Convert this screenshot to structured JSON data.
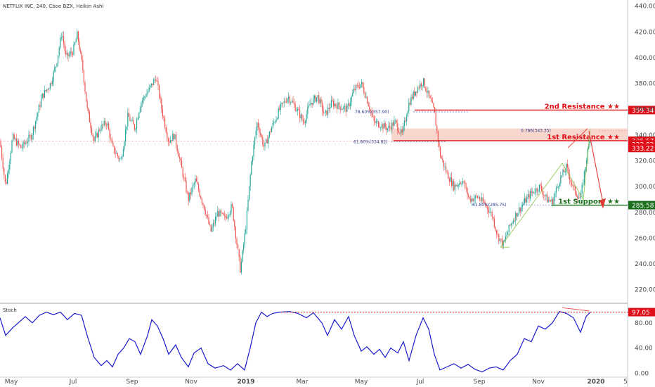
{
  "header": {
    "title": "NETFLIX INC, 240, Cboe BZX, Heikin Ashi"
  },
  "colors": {
    "up": "#26a69a",
    "down": "#ef5350",
    "resistance": "#e0101a",
    "support": "#1b6e1b",
    "stoch": "#1a1acc",
    "zone": "#f7c8bc"
  },
  "chart_data": [
    {
      "type": "line",
      "name": "price-panel",
      "title": "NETFLIX INC, 240, Cboe BZX, Heikin Ashi",
      "x_labels": [
        "May",
        "Jul",
        "Sep",
        "Nov",
        "2019",
        "Mar",
        "May",
        "Jul",
        "Sep",
        "Nov",
        "2020",
        "5"
      ],
      "y_ticks": [
        "440.00",
        "420.00",
        "400.00",
        "380.00",
        "360.00",
        "340.00",
        "320.00",
        "300.00",
        "280.00",
        "260.00",
        "240.00",
        "220.00"
      ],
      "ylim": [
        210,
        442
      ],
      "price_path": [
        [
          0,
          335
        ],
        [
          8,
          300
        ],
        [
          18,
          338
        ],
        [
          30,
          330
        ],
        [
          45,
          340
        ],
        [
          60,
          370
        ],
        [
          72,
          380
        ],
        [
          80,
          395
        ],
        [
          88,
          420
        ],
        [
          94,
          400
        ],
        [
          104,
          405
        ],
        [
          110,
          418
        ],
        [
          118,
          390
        ],
        [
          124,
          360
        ],
        [
          134,
          335
        ],
        [
          142,
          345
        ],
        [
          152,
          350
        ],
        [
          160,
          330
        ],
        [
          172,
          320
        ],
        [
          182,
          355
        ],
        [
          192,
          345
        ],
        [
          200,
          365
        ],
        [
          212,
          375
        ],
        [
          222,
          385
        ],
        [
          230,
          360
        ],
        [
          240,
          335
        ],
        [
          248,
          340
        ],
        [
          258,
          315
        ],
        [
          268,
          290
        ],
        [
          278,
          305
        ],
        [
          290,
          285
        ],
        [
          300,
          265
        ],
        [
          310,
          280
        ],
        [
          320,
          275
        ],
        [
          330,
          285
        ],
        [
          336,
          260
        ],
        [
          342,
          235
        ],
        [
          350,
          270
        ],
        [
          358,
          320
        ],
        [
          366,
          350
        ],
        [
          376,
          330
        ],
        [
          386,
          345
        ],
        [
          398,
          360
        ],
        [
          410,
          370
        ],
        [
          422,
          360
        ],
        [
          432,
          350
        ],
        [
          442,
          365
        ],
        [
          452,
          370
        ],
        [
          462,
          355
        ],
        [
          472,
          365
        ],
        [
          484,
          362
        ],
        [
          494,
          360
        ],
        [
          504,
          375
        ],
        [
          514,
          380
        ],
        [
          522,
          368
        ],
        [
          532,
          350
        ],
        [
          542,
          348
        ],
        [
          552,
          345
        ],
        [
          562,
          350
        ],
        [
          572,
          340
        ],
        [
          582,
          365
        ],
        [
          592,
          375
        ],
        [
          602,
          382
        ],
        [
          610,
          370
        ],
        [
          618,
          358
        ],
        [
          626,
          325
        ],
        [
          636,
          310
        ],
        [
          646,
          300
        ],
        [
          658,
          305
        ],
        [
          668,
          290
        ],
        [
          680,
          292
        ],
        [
          692,
          285
        ],
        [
          700,
          278
        ],
        [
          708,
          262
        ],
        [
          716,
          255
        ],
        [
          726,
          270
        ],
        [
          736,
          280
        ],
        [
          746,
          288
        ],
        [
          756,
          295
        ],
        [
          768,
          300
        ],
        [
          778,
          290
        ],
        [
          786,
          288
        ],
        [
          796,
          305
        ],
        [
          806,
          315
        ],
        [
          816,
          298
        ],
        [
          826,
          290
        ],
        [
          834,
          320
        ],
        [
          840,
          340
        ]
      ],
      "annotations": [
        {
          "label": "78.60%(357.90)",
          "value": 357.9
        },
        {
          "label": "61.80%(334.82)",
          "value": 334.82
        },
        {
          "label": "0.786(343.35)",
          "value": 343.35
        },
        {
          "label": "61.80%(285.75)",
          "value": 285.75
        }
      ],
      "levels": [
        {
          "label": "2nd Resistance ★★",
          "value": 359.34,
          "badge": "359.34",
          "kind": "resistance"
        },
        {
          "label": "1st Resistance ★★",
          "value": 335.57,
          "badge": "335.57",
          "kind": "resistance"
        },
        {
          "label": "1st Support ★★",
          "value": 285.58,
          "badge": "285.58",
          "kind": "support"
        }
      ],
      "price_badges": [
        "333.82",
        "333.22"
      ],
      "zone": [
        335.57,
        345.0
      ]
    },
    {
      "type": "line",
      "name": "stoch-panel",
      "title": "Stoch",
      "y_ticks": [
        "80.00",
        "40.00",
        "0.00"
      ],
      "ylim": [
        -3,
        110
      ],
      "level": {
        "value": 97.05,
        "badge": "97.05"
      },
      "stoch_path": [
        [
          0,
          88
        ],
        [
          8,
          60
        ],
        [
          18,
          72
        ],
        [
          28,
          82
        ],
        [
          36,
          90
        ],
        [
          46,
          80
        ],
        [
          56,
          92
        ],
        [
          66,
          97
        ],
        [
          76,
          93
        ],
        [
          86,
          97
        ],
        [
          96,
          85
        ],
        [
          106,
          95
        ],
        [
          116,
          92
        ],
        [
          124,
          60
        ],
        [
          134,
          25
        ],
        [
          144,
          12
        ],
        [
          152,
          20
        ],
        [
          160,
          10
        ],
        [
          168,
          30
        ],
        [
          176,
          40
        ],
        [
          184,
          55
        ],
        [
          192,
          50
        ],
        [
          200,
          30
        ],
        [
          210,
          60
        ],
        [
          216,
          85
        ],
        [
          224,
          75
        ],
        [
          232,
          55
        ],
        [
          240,
          30
        ],
        [
          250,
          45
        ],
        [
          258,
          25
        ],
        [
          268,
          10
        ],
        [
          276,
          32
        ],
        [
          286,
          40
        ],
        [
          296,
          15
        ],
        [
          306,
          8
        ],
        [
          318,
          12
        ],
        [
          328,
          5
        ],
        [
          338,
          15
        ],
        [
          348,
          5
        ],
        [
          356,
          40
        ],
        [
          364,
          80
        ],
        [
          372,
          97
        ],
        [
          380,
          90
        ],
        [
          388,
          95
        ],
        [
          398,
          97
        ],
        [
          412,
          98
        ],
        [
          424,
          95
        ],
        [
          436,
          88
        ],
        [
          446,
          96
        ],
        [
          458,
          80
        ],
        [
          466,
          60
        ],
        [
          476,
          85
        ],
        [
          486,
          70
        ],
        [
          496,
          90
        ],
        [
          504,
          60
        ],
        [
          514,
          35
        ],
        [
          522,
          42
        ],
        [
          532,
          30
        ],
        [
          540,
          38
        ],
        [
          548,
          25
        ],
        [
          556,
          40
        ],
        [
          566,
          32
        ],
        [
          574,
          50
        ],
        [
          582,
          20
        ],
        [
          592,
          60
        ],
        [
          602,
          88
        ],
        [
          610,
          70
        ],
        [
          618,
          30
        ],
        [
          626,
          5
        ],
        [
          636,
          10
        ],
        [
          646,
          15
        ],
        [
          656,
          8
        ],
        [
          666,
          14
        ],
        [
          676,
          6
        ],
        [
          686,
          2
        ],
        [
          696,
          8
        ],
        [
          706,
          10
        ],
        [
          716,
          5
        ],
        [
          726,
          20
        ],
        [
          736,
          30
        ],
        [
          746,
          55
        ],
        [
          756,
          50
        ],
        [
          766,
          75
        ],
        [
          776,
          70
        ],
        [
          786,
          80
        ],
        [
          796,
          98
        ],
        [
          806,
          95
        ],
        [
          816,
          88
        ],
        [
          826,
          65
        ],
        [
          834,
          90
        ],
        [
          840,
          97
        ]
      ]
    }
  ]
}
